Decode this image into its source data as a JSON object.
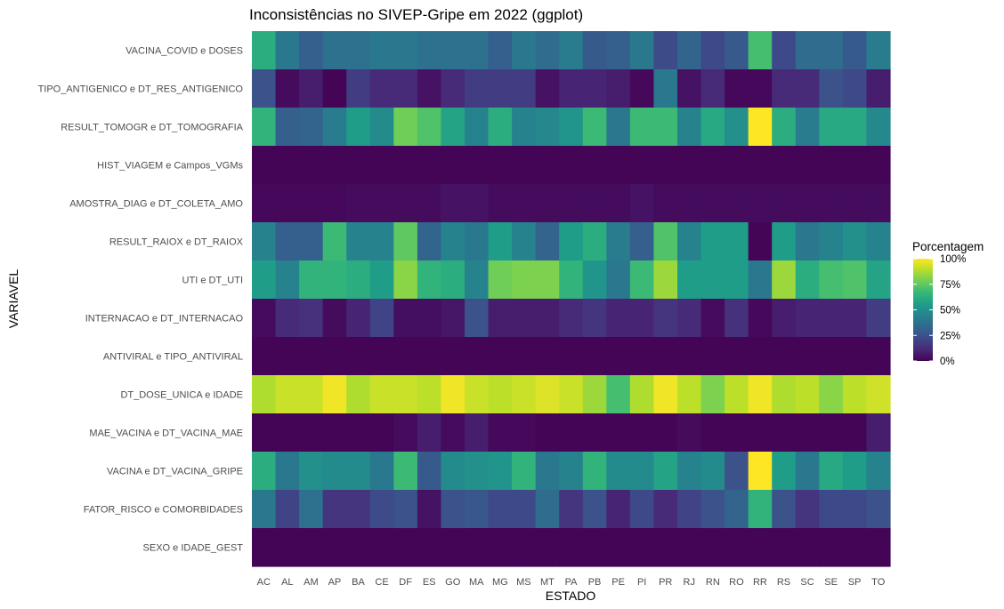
{
  "chart_data": {
    "type": "heatmap",
    "title": "Inconsistências no SIVEP-Gripe em 2022 (ggplot)",
    "xlabel": "ESTADO",
    "ylabel": "VARIAVEL",
    "x": [
      "AC",
      "AL",
      "AM",
      "AP",
      "BA",
      "CE",
      "DF",
      "ES",
      "GO",
      "MA",
      "MG",
      "MS",
      "MT",
      "PA",
      "PB",
      "PE",
      "PI",
      "PR",
      "RJ",
      "RN",
      "RO",
      "RR",
      "RS",
      "SC",
      "SE",
      "SP",
      "TO"
    ],
    "y": [
      "VACINA_COVID e DOSES",
      "TIPO_ANTIGENICO e DT_RES_ANTIGENICO",
      "RESULT_TOMOGR e DT_TOMOGRAFIA",
      "HIST_VIAGEM e Campos_VGMs",
      "AMOSTRA_DIAG e DT_COLETA_AMO",
      "RESULT_RAIOX e DT_RAIOX",
      "UTI e DT_UTI",
      "INTERNACAO e DT_INTERNACAO",
      "ANTIVIRAL e TIPO_ANTIVIRAL",
      "DT_DOSE_UNICA e IDADE",
      "MAE_VACINA e DT_VACINA_MAE",
      "VACINA e DT_VACINA_GRIPE",
      "FATOR_RISCO e COMORBIDADES",
      "SEXO e IDADE_GEST"
    ],
    "values": [
      [
        62,
        40,
        30,
        37,
        37,
        40,
        40,
        37,
        37,
        37,
        30,
        40,
        35,
        42,
        28,
        30,
        40,
        23,
        32,
        22,
        28,
        70,
        22,
        35,
        35,
        28,
        42
      ],
      [
        25,
        3,
        8,
        1,
        18,
        12,
        12,
        5,
        12,
        18,
        18,
        18,
        5,
        10,
        10,
        8,
        2,
        40,
        5,
        12,
        2,
        2,
        12,
        12,
        25,
        22,
        8
      ],
      [
        65,
        30,
        32,
        42,
        55,
        48,
        78,
        72,
        58,
        45,
        62,
        45,
        47,
        52,
        68,
        40,
        68,
        68,
        45,
        60,
        50,
        100,
        62,
        42,
        60,
        60,
        47
      ],
      [
        1,
        1,
        1,
        1,
        1,
        1,
        1,
        1,
        1,
        1,
        1,
        1,
        1,
        1,
        1,
        1,
        1,
        1,
        1,
        1,
        1,
        1,
        1,
        1,
        1,
        1,
        1
      ],
      [
        2,
        2,
        2,
        2,
        3,
        3,
        3,
        3,
        5,
        5,
        3,
        3,
        3,
        3,
        3,
        3,
        5,
        3,
        3,
        3,
        3,
        3,
        3,
        3,
        3,
        3,
        3
      ],
      [
        45,
        30,
        30,
        68,
        45,
        45,
        75,
        32,
        45,
        40,
        55,
        45,
        32,
        55,
        62,
        42,
        30,
        72,
        45,
        55,
        55,
        1,
        55,
        40,
        45,
        50,
        45
      ],
      [
        55,
        45,
        65,
        65,
        62,
        55,
        82,
        65,
        62,
        45,
        78,
        80,
        80,
        65,
        52,
        40,
        68,
        85,
        55,
        55,
        55,
        40,
        85,
        62,
        70,
        72,
        58
      ],
      [
        3,
        12,
        14,
        3,
        10,
        20,
        4,
        4,
        6,
        25,
        8,
        8,
        8,
        12,
        15,
        10,
        10,
        15,
        12,
        3,
        14,
        2,
        8,
        10,
        10,
        10,
        18
      ],
      [
        1,
        1,
        1,
        1,
        1,
        1,
        1,
        1,
        1,
        1,
        1,
        1,
        1,
        1,
        1,
        1,
        1,
        1,
        1,
        1,
        1,
        1,
        1,
        1,
        1,
        1,
        1
      ],
      [
        88,
        92,
        92,
        98,
        88,
        92,
        92,
        90,
        98,
        92,
        90,
        92,
        95,
        92,
        85,
        70,
        88,
        98,
        90,
        80,
        90,
        98,
        88,
        90,
        82,
        90,
        93
      ],
      [
        1,
        1,
        1,
        1,
        1,
        1,
        3,
        8,
        3,
        8,
        2,
        2,
        1,
        1,
        1,
        1,
        1,
        1,
        3,
        1,
        1,
        1,
        1,
        1,
        1,
        1,
        8
      ],
      [
        62,
        40,
        50,
        48,
        48,
        40,
        68,
        28,
        48,
        50,
        52,
        65,
        40,
        45,
        65,
        48,
        48,
        58,
        45,
        48,
        25,
        100,
        55,
        40,
        60,
        55,
        45
      ],
      [
        40,
        20,
        37,
        15,
        15,
        23,
        25,
        5,
        25,
        27,
        22,
        22,
        35,
        15,
        25,
        10,
        22,
        12,
        20,
        25,
        32,
        65,
        25,
        15,
        22,
        22,
        25
      ],
      [
        1,
        1,
        1,
        1,
        1,
        1,
        1,
        1,
        1,
        1,
        1,
        1,
        1,
        1,
        1,
        1,
        1,
        1,
        1,
        1,
        1,
        1,
        1,
        1,
        1,
        1,
        1
      ]
    ],
    "value_range": [
      0,
      100
    ],
    "colorscale": "viridis",
    "grid": false,
    "legend": {
      "title": "Porcentagem",
      "position": "right",
      "ticks": [
        0,
        25,
        50,
        75,
        100
      ],
      "tick_labels": [
        "0%",
        "25%",
        "50%",
        "75%",
        "100%"
      ]
    }
  }
}
